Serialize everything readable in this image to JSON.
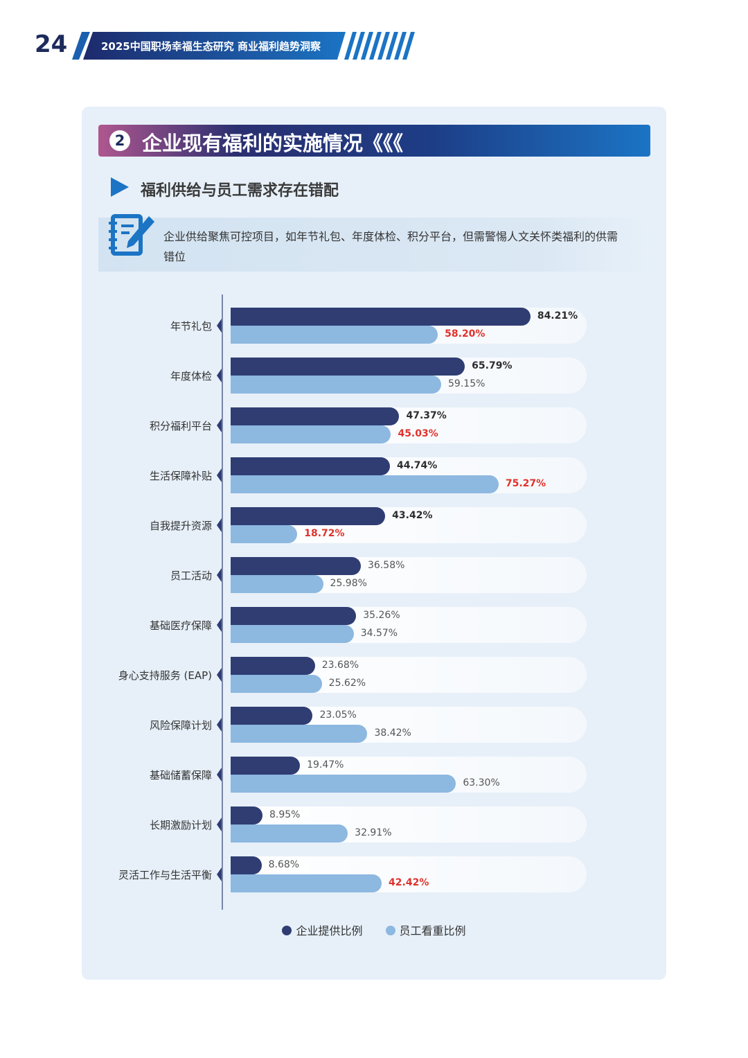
{
  "header": {
    "page_number": "24",
    "title": "2025中国职场幸福生态研究  商业福利趋势洞察"
  },
  "section": {
    "number": "2",
    "title": "企业现有福利的实施情况《《《"
  },
  "subsection": {
    "title": "福利供给与员工需求存在错配"
  },
  "note": {
    "icon": "notebook-pen-icon",
    "text": "企业供给聚焦可控项目，如年节礼包、年度体检、积分平台，但需警惕人文关怀类福利的供需错位"
  },
  "colors": {
    "enterprise": "#2f3d73",
    "employee": "#8db8e0",
    "highlight": "#e0322c"
  },
  "chart_data": {
    "type": "bar",
    "orientation": "horizontal",
    "xlim": [
      0,
      100
    ],
    "grid": false,
    "legend_position": "bottom",
    "categories": [
      "年节礼包",
      "年度体检",
      "积分福利平台",
      "生活保障补贴",
      "自我提升资源",
      "员工活动",
      "基础医疗保障",
      "身心支持服务 (EAP)",
      "风险保障计划",
      "基础储蓄保障",
      "长期激励计划",
      "灵活工作与生活平衡"
    ],
    "series": [
      {
        "name": "企业提供比例",
        "values": [
          84.21,
          65.79,
          47.37,
          44.74,
          43.42,
          36.58,
          35.26,
          23.68,
          23.05,
          19.47,
          8.95,
          8.68
        ],
        "labels": [
          "84.21%",
          "65.79%",
          "47.37%",
          "44.74%",
          "43.42%",
          "36.58%",
          "35.26%",
          "23.68%",
          "23.05%",
          "19.47%",
          "8.95%",
          "8.68%"
        ],
        "label_style": [
          "bold",
          "bold",
          "bold",
          "bold",
          "bold",
          "normal",
          "normal",
          "normal",
          "normal",
          "normal",
          "normal",
          "normal"
        ]
      },
      {
        "name": "员工看重比例",
        "values": [
          58.2,
          59.15,
          45.03,
          75.27,
          18.72,
          25.98,
          34.57,
          25.62,
          38.42,
          63.3,
          32.91,
          42.42
        ],
        "labels": [
          "58.20%",
          "59.15%",
          "45.03%",
          "75.27%",
          "18.72%",
          "25.98%",
          "34.57%",
          "25.62%",
          "38.42%",
          "63.30%",
          "32.91%",
          "42.42%"
        ],
        "label_style": [
          "red",
          "normal",
          "red",
          "red",
          "red",
          "normal",
          "normal",
          "normal",
          "normal",
          "normal",
          "normal",
          "red"
        ]
      }
    ]
  }
}
